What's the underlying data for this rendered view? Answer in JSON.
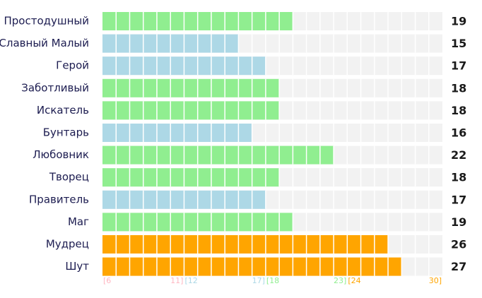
{
  "chart_data": {
    "type": "segmented-bar",
    "categories": [
      "Простодушный",
      "Славный Малый",
      "Герой",
      "Заботливый",
      "Искатель",
      "Бунтарь",
      "Любовник",
      "Творец",
      "Правитель",
      "Маг",
      "Мудрец",
      "Шут"
    ],
    "values": [
      19,
      15,
      17,
      18,
      18,
      16,
      22,
      18,
      17,
      19,
      26,
      27
    ],
    "colors": [
      "#90ee90",
      "#add8e6",
      "#add8e6",
      "#90ee90",
      "#90ee90",
      "#add8e6",
      "#90ee90",
      "#90ee90",
      "#add8e6",
      "#90ee90",
      "#ffa500",
      "#ffa500"
    ],
    "xlim": [
      5,
      30
    ],
    "zones": [
      {
        "start": {
          "value": 5,
          "label": "[6"
        },
        "end": {
          "value": 11,
          "label": "11]"
        },
        "color": "#ffb6c1"
      },
      {
        "start": {
          "value": 11,
          "label": "[12"
        },
        "end": {
          "value": 17,
          "label": "17]"
        },
        "color": "#add8e6"
      },
      {
        "start": {
          "value": 17,
          "label": "[18"
        },
        "end": {
          "value": 23,
          "label": "23]"
        },
        "color": "#90ee90"
      },
      {
        "start": {
          "value": 23,
          "label": "[24"
        },
        "end": {
          "value": 30,
          "label": "30]"
        },
        "color": "#ffa500"
      }
    ]
  }
}
